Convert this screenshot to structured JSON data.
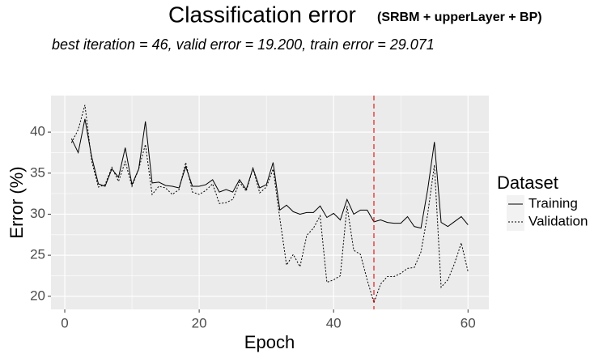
{
  "chart_data": {
    "type": "line",
    "title": "Classification error",
    "title_note": "(SRBM + upperLayer + BP)",
    "subtitle": "best iteration = 46, valid error = 19.200, train error = 29.071",
    "x_label": "Epoch",
    "y_label": "Error (%)",
    "x": [
      1,
      2,
      3,
      4,
      5,
      6,
      7,
      8,
      9,
      10,
      11,
      12,
      13,
      14,
      15,
      16,
      17,
      18,
      19,
      20,
      21,
      22,
      23,
      24,
      25,
      26,
      27,
      28,
      29,
      30,
      31,
      32,
      33,
      34,
      35,
      36,
      37,
      38,
      39,
      40,
      41,
      42,
      43,
      44,
      45,
      46,
      47,
      48,
      49,
      50,
      51,
      52,
      53,
      54,
      55,
      56,
      57,
      58,
      59,
      60
    ],
    "series": [
      {
        "name": "Training",
        "color": "#000000",
        "dash": "solid",
        "values": [
          39.2,
          37.5,
          41.6,
          37,
          33.7,
          33.4,
          35.5,
          34.5,
          38.1,
          33.6,
          35.5,
          41.3,
          33.8,
          33.9,
          33.5,
          33.4,
          33.2,
          35.8,
          33.4,
          33.4,
          33.6,
          34.2,
          32.7,
          33.0,
          32.7,
          34.2,
          33.0,
          35.6,
          33.2,
          33.6,
          36.3,
          30.5,
          31.1,
          30.3,
          30.0,
          30.2,
          30.2,
          31.0,
          29.6,
          30.1,
          29.3,
          31.8,
          30.0,
          30.5,
          30.5,
          29.071,
          29.3,
          29.0,
          28.9,
          28.9,
          29.7,
          28.5,
          28.3,
          33.0,
          38.8,
          29.0,
          28.5,
          29.1,
          29.7,
          28.7
        ]
      },
      {
        "name": "Validation",
        "color": "#000000",
        "dash": "dotted",
        "values": [
          38.7,
          40.3,
          43.3,
          36.5,
          33.3,
          33.6,
          35.7,
          34.0,
          36.4,
          33.4,
          35.5,
          38.5,
          32.4,
          33.4,
          33.2,
          32.4,
          33.0,
          36.3,
          32.7,
          32.4,
          32.9,
          33.7,
          31.3,
          31.4,
          31.8,
          33.9,
          32.8,
          35.6,
          32.6,
          33.3,
          35.5,
          29.5,
          23.8,
          25.1,
          23.6,
          27.4,
          28.3,
          29.8,
          21.7,
          22.0,
          22.5,
          31.0,
          25.6,
          25.1,
          22.0,
          19.2,
          21.5,
          22.4,
          22.4,
          22.8,
          23.4,
          23.5,
          25.4,
          30.0,
          36.0,
          21.1,
          22.0,
          24.0,
          26.5,
          23.0
        ]
      }
    ],
    "vline_x": 46,
    "vline_color": "#e41a1c",
    "xlim": [
      -2.05,
      63.1
    ],
    "xticks": [
      0,
      20,
      40,
      60
    ],
    "ylim": [
      18.4,
      44.45
    ],
    "yticks": [
      20,
      25,
      30,
      35,
      40
    ],
    "grid": true,
    "legend_title": "Dataset",
    "legend_position": "right"
  }
}
